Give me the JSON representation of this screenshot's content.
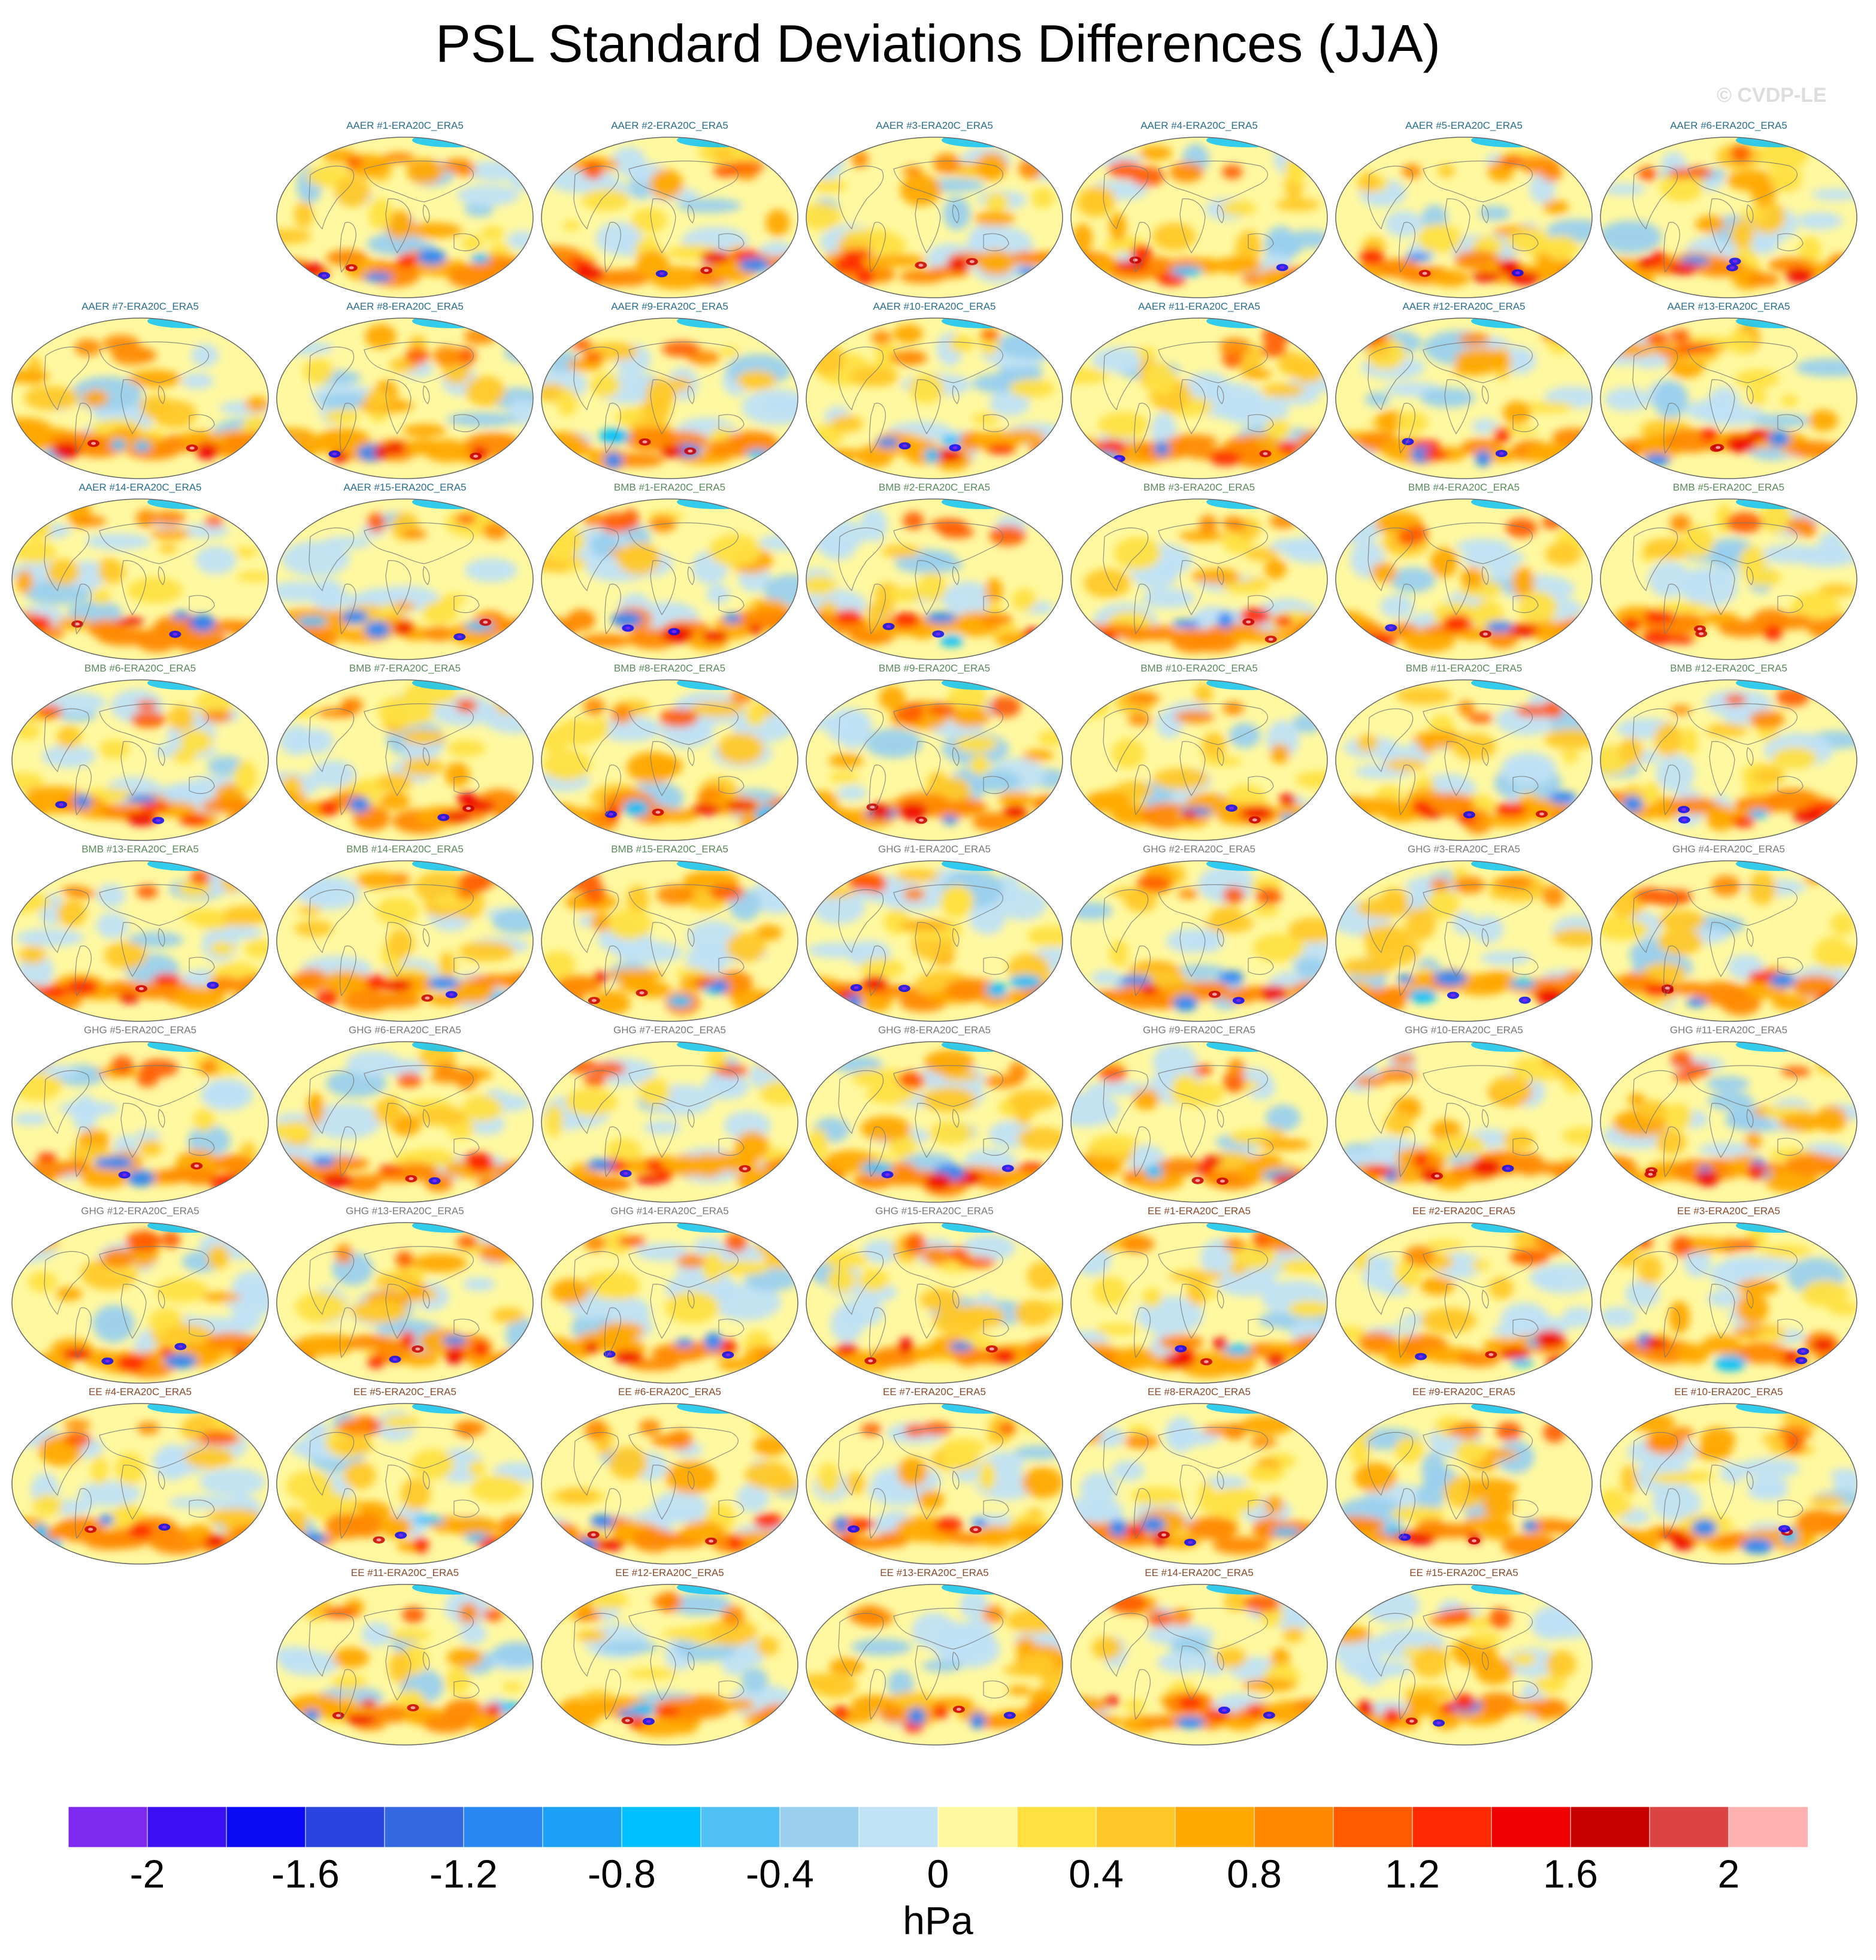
{
  "title": "PSL Standard Deviations Differences (JJA)",
  "copyright": "© CVDP-LE",
  "chart_data": {
    "type": "heatmap",
    "title": "PSL Standard Deviations Differences (JJA)",
    "units": "hPa",
    "projection": "global map panels (Robinson-like)",
    "panels": [
      {
        "label": "AAER #1-ERA20C_ERA5",
        "group": "AAER"
      },
      {
        "label": "AAER #2-ERA20C_ERA5",
        "group": "AAER"
      },
      {
        "label": "AAER #3-ERA20C_ERA5",
        "group": "AAER"
      },
      {
        "label": "AAER #4-ERA20C_ERA5",
        "group": "AAER"
      },
      {
        "label": "AAER #5-ERA20C_ERA5",
        "group": "AAER"
      },
      {
        "label": "AAER #6-ERA20C_ERA5",
        "group": "AAER"
      },
      {
        "label": "AAER #7-ERA20C_ERA5",
        "group": "AAER"
      },
      {
        "label": "AAER #8-ERA20C_ERA5",
        "group": "AAER"
      },
      {
        "label": "AAER #9-ERA20C_ERA5",
        "group": "AAER"
      },
      {
        "label": "AAER #10-ERA20C_ERA5",
        "group": "AAER"
      },
      {
        "label": "AAER #11-ERA20C_ERA5",
        "group": "AAER"
      },
      {
        "label": "AAER #12-ERA20C_ERA5",
        "group": "AAER"
      },
      {
        "label": "AAER #13-ERA20C_ERA5",
        "group": "AAER"
      },
      {
        "label": "AAER #14-ERA20C_ERA5",
        "group": "AAER"
      },
      {
        "label": "AAER #15-ERA20C_ERA5",
        "group": "AAER"
      },
      {
        "label": "BMB #1-ERA20C_ERA5",
        "group": "BMB"
      },
      {
        "label": "BMB #2-ERA20C_ERA5",
        "group": "BMB"
      },
      {
        "label": "BMB #3-ERA20C_ERA5",
        "group": "BMB"
      },
      {
        "label": "BMB #4-ERA20C_ERA5",
        "group": "BMB"
      },
      {
        "label": "BMB #5-ERA20C_ERA5",
        "group": "BMB"
      },
      {
        "label": "BMB #6-ERA20C_ERA5",
        "group": "BMB"
      },
      {
        "label": "BMB #7-ERA20C_ERA5",
        "group": "BMB"
      },
      {
        "label": "BMB #8-ERA20C_ERA5",
        "group": "BMB"
      },
      {
        "label": "BMB #9-ERA20C_ERA5",
        "group": "BMB"
      },
      {
        "label": "BMB #10-ERA20C_ERA5",
        "group": "BMB"
      },
      {
        "label": "BMB #11-ERA20C_ERA5",
        "group": "BMB"
      },
      {
        "label": "BMB #12-ERA20C_ERA5",
        "group": "BMB"
      },
      {
        "label": "BMB #13-ERA20C_ERA5",
        "group": "BMB"
      },
      {
        "label": "BMB #14-ERA20C_ERA5",
        "group": "BMB"
      },
      {
        "label": "BMB #15-ERA20C_ERA5",
        "group": "BMB"
      },
      {
        "label": "GHG #1-ERA20C_ERA5",
        "group": "GHG"
      },
      {
        "label": "GHG #2-ERA20C_ERA5",
        "group": "GHG"
      },
      {
        "label": "GHG #3-ERA20C_ERA5",
        "group": "GHG"
      },
      {
        "label": "GHG #4-ERA20C_ERA5",
        "group": "GHG"
      },
      {
        "label": "GHG #5-ERA20C_ERA5",
        "group": "GHG"
      },
      {
        "label": "GHG #6-ERA20C_ERA5",
        "group": "GHG"
      },
      {
        "label": "GHG #7-ERA20C_ERA5",
        "group": "GHG"
      },
      {
        "label": "GHG #8-ERA20C_ERA5",
        "group": "GHG"
      },
      {
        "label": "GHG #9-ERA20C_ERA5",
        "group": "GHG"
      },
      {
        "label": "GHG #10-ERA20C_ERA5",
        "group": "GHG"
      },
      {
        "label": "GHG #11-ERA20C_ERA5",
        "group": "GHG"
      },
      {
        "label": "GHG #12-ERA20C_ERA5",
        "group": "GHG"
      },
      {
        "label": "GHG #13-ERA20C_ERA5",
        "group": "GHG"
      },
      {
        "label": "GHG #14-ERA20C_ERA5",
        "group": "GHG"
      },
      {
        "label": "GHG #15-ERA20C_ERA5",
        "group": "GHG"
      },
      {
        "label": "EE #1-ERA20C_ERA5",
        "group": "EE"
      },
      {
        "label": "EE #2-ERA20C_ERA5",
        "group": "EE"
      },
      {
        "label": "EE #3-ERA20C_ERA5",
        "group": "EE"
      },
      {
        "label": "EE #4-ERA20C_ERA5",
        "group": "EE"
      },
      {
        "label": "EE #5-ERA20C_ERA5",
        "group": "EE"
      },
      {
        "label": "EE #6-ERA20C_ERA5",
        "group": "EE"
      },
      {
        "label": "EE #7-ERA20C_ERA5",
        "group": "EE"
      },
      {
        "label": "EE #8-ERA20C_ERA5",
        "group": "EE"
      },
      {
        "label": "EE #9-ERA20C_ERA5",
        "group": "EE"
      },
      {
        "label": "EE #10-ERA20C_ERA5",
        "group": "EE"
      },
      {
        "label": "EE #11-ERA20C_ERA5",
        "group": "EE"
      },
      {
        "label": "EE #12-ERA20C_ERA5",
        "group": "EE"
      },
      {
        "label": "EE #13-ERA20C_ERA5",
        "group": "EE"
      },
      {
        "label": "EE #14-ERA20C_ERA5",
        "group": "EE"
      },
      {
        "label": "EE #15-ERA20C_ERA5",
        "group": "EE"
      }
    ],
    "group_title_colors": {
      "AAER": "#2a6f8f",
      "BMB": "#5a8a5a",
      "GHG": "#7a7a7a",
      "EE": "#8b4a2a"
    },
    "colorbar": {
      "range": [
        -2.2,
        2.2
      ],
      "step": 0.2,
      "tick_labels": [
        "-2",
        "-1.6",
        "-1.2",
        "-0.8",
        "-0.4",
        "0",
        "0.4",
        "0.8",
        "1.2",
        "1.6",
        "2"
      ],
      "tick_values": [
        -2,
        -1.6,
        -1.2,
        -0.8,
        -0.4,
        0,
        0.4,
        0.8,
        1.2,
        1.6,
        2
      ],
      "colors": [
        "#7f28f0",
        "#3c10f5",
        "#0a0af5",
        "#2a44e0",
        "#3368e0",
        "#2a88f5",
        "#1aa0f5",
        "#00c0ff",
        "#50c0f5",
        "#9ad0ee",
        "#c0e2f5",
        "#fff8a0",
        "#ffe040",
        "#ffc828",
        "#ffa800",
        "#ff8800",
        "#ff5a00",
        "#ff2a00",
        "#f00000",
        "#c80000",
        "#dc4444",
        "#ffb0b0"
      ]
    }
  }
}
